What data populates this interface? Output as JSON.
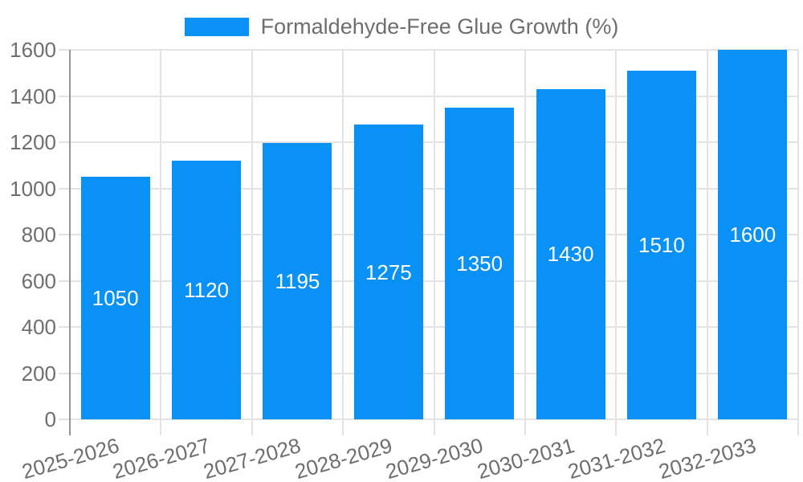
{
  "chart_data": {
    "type": "bar",
    "title": "Formaldehyde-Free Glue Growth (%)",
    "series": [
      {
        "name": "Formaldehyde-Free Glue Growth (%)",
        "values": [
          1050,
          1120,
          1195,
          1275,
          1350,
          1430,
          1510,
          1600
        ]
      }
    ],
    "categories": [
      "2025-2026",
      "2026-2027",
      "2027-2028",
      "2028-2029",
      "2029-2030",
      "2030-2031",
      "2031-2032",
      "2032-2033"
    ],
    "values": [
      1050,
      1120,
      1195,
      1275,
      1350,
      1430,
      1510,
      1600
    ],
    "value_labels": [
      "1050",
      "1120",
      "1195",
      "1275",
      "1350",
      "1430",
      "1510",
      "1600"
    ],
    "yticks": [
      "0",
      "200",
      "400",
      "600",
      "800",
      "1000",
      "1200",
      "1400",
      "1600"
    ],
    "ylim": [
      0,
      1600
    ],
    "xlabel": "",
    "ylabel": "",
    "grid": true,
    "legend_position": "top",
    "value_label_position": "inside-center",
    "colors": {
      "bar": "#0a91f5",
      "grid": "#e3e3e3",
      "axis_line": "#949494",
      "tick_text": "#6e6e6e",
      "legend_text": "#6e6e6e",
      "value_label": "#ffffff",
      "background": "#ffffff"
    }
  }
}
